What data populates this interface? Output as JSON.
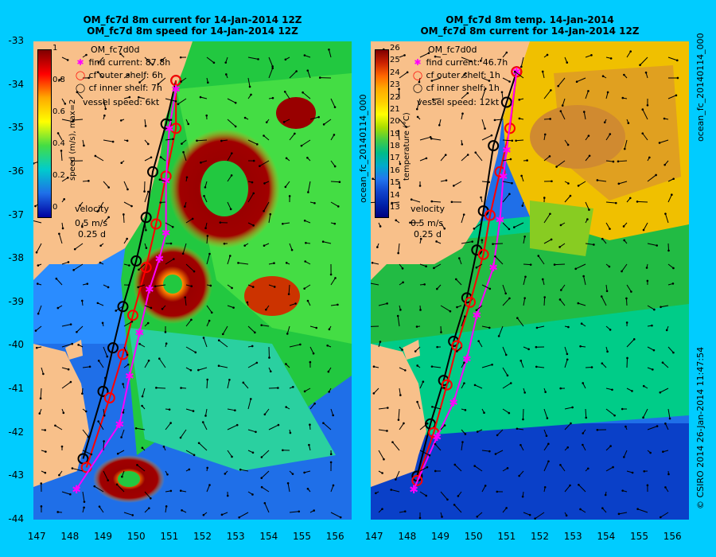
{
  "left": {
    "title1": "OM_fc7d 8m current for 14-Jan-2014 12Z",
    "title2": "OM_fc7d 8m speed for 14-Jan-2014 12Z",
    "model": "OM_fc7d0d",
    "legend": [
      {
        "label": "find current: 87.8h",
        "color": "#ff00ff",
        "marker": "asterisk"
      },
      {
        "label": "cf outer shelf: 6h",
        "color": "#ff0000",
        "marker": "circle"
      },
      {
        "label": "cf inner shelf: 7h",
        "color": "#000000",
        "marker": "circle"
      }
    ],
    "vessel_speed": "vessel speed: 6kt",
    "velocity_label": "velocity",
    "velocity_scale": "0.5 m/s",
    "velocity_time": "0.25 d",
    "colorbar_label": "speed (m/s), max=2",
    "colorbar_ticks": [
      "1",
      "0.8",
      "0.6",
      "0.4",
      "0.2",
      "0"
    ]
  },
  "right": {
    "title1": "OM_fc7d 8m temp. 14-Jan-2014",
    "title2": "OM_fc7d 8m current for 14-Jan-2014 12Z",
    "model": "OM_fc7d0d",
    "legend": [
      {
        "label": "find current: 46.7h",
        "color": "#ff00ff",
        "marker": "asterisk"
      },
      {
        "label": "cf outer shelf: 1h",
        "color": "#ff0000",
        "marker": "circle"
      },
      {
        "label": "cf inner shelf: 1h",
        "color": "#000000",
        "marker": "circle"
      }
    ],
    "vessel_speed": "vessel speed: 12kt",
    "velocity_label": "velocity",
    "velocity_scale": "0.5 m/s",
    "velocity_time": "0.25 d",
    "colorbar_label": "temperature (°C)",
    "colorbar_ticks": [
      "26",
      "25",
      "24",
      "23",
      "22",
      "21",
      "20",
      "19",
      "18",
      "17",
      "16",
      "15",
      "14",
      "13"
    ]
  },
  "side_label_left": "ocean_fc_20140114_000",
  "side_label_right": "ocean_fc_20140114_000",
  "footer_label": "© CSIRO 2014   26-Jan-2014 11:47:54",
  "y_ticks": [
    "-33",
    "-34",
    "-35",
    "-36",
    "-37",
    "-38",
    "-39",
    "-40",
    "-41",
    "-42",
    "-43",
    "-44"
  ],
  "x_ticks": [
    "147",
    "148",
    "149",
    "150",
    "151",
    "152",
    "153",
    "154",
    "155",
    "156"
  ],
  "colors": {
    "background": "#00ccff",
    "land": "#f8c08a",
    "find": "#ff00ff",
    "outer": "#ff0000",
    "inner": "#000000"
  }
}
